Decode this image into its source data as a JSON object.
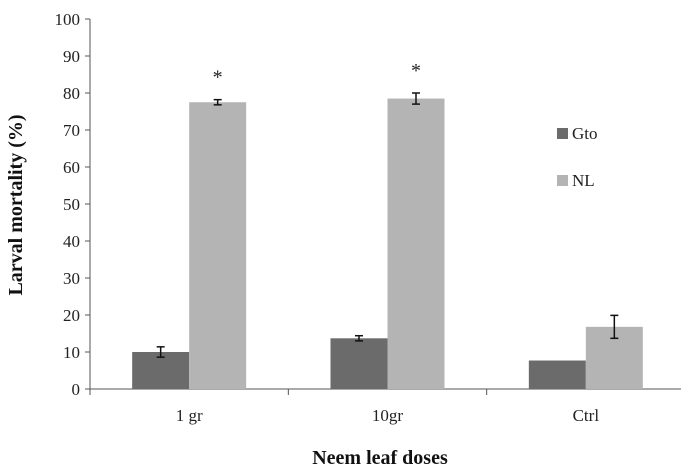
{
  "chart_data": {
    "type": "bar",
    "title": "",
    "xlabel": "Neem leaf doses",
    "ylabel": "Larval  mortality (%)",
    "categories": [
      "1 gr",
      "10gr",
      "Ctrl"
    ],
    "ylim": [
      0,
      100
    ],
    "yticks": [
      0,
      10,
      20,
      30,
      40,
      50,
      60,
      70,
      80,
      90,
      100
    ],
    "grid": false,
    "legend_position": "right",
    "series": [
      {
        "name": "Gto",
        "color": "#6b6b6b",
        "values": [
          10,
          13.7,
          7.7
        ],
        "errors": [
          1.4,
          0.7,
          0
        ]
      },
      {
        "name": "NL",
        "color": "#b4b4b4",
        "values": [
          77.5,
          78.5,
          16.8
        ],
        "errors": [
          0.7,
          1.5,
          3.1
        ]
      }
    ],
    "annotations": [
      {
        "category": "1 gr",
        "series": "NL",
        "text": "*"
      },
      {
        "category": "10gr",
        "series": "NL",
        "text": "*"
      }
    ]
  }
}
